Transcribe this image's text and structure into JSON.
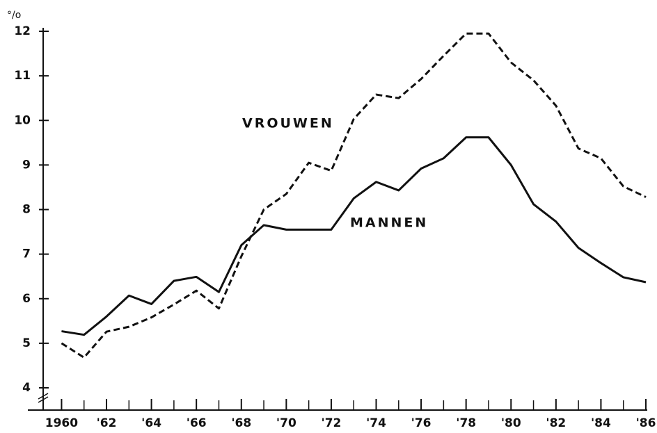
{
  "chart_data": {
    "type": "line",
    "y_unit_label": "°/o",
    "annotations": [
      "VROUWEN",
      "MANNEN"
    ],
    "x": [
      1960,
      1961,
      1962,
      1963,
      1964,
      1965,
      1966,
      1967,
      1968,
      1969,
      1970,
      1971,
      1972,
      1973,
      1974,
      1975,
      1976,
      1977,
      1978,
      1979,
      1980,
      1981,
      1982,
      1983,
      1984,
      1985,
      1986
    ],
    "series": [
      {
        "name": "VROUWEN",
        "color": "#111",
        "dash": true,
        "values": [
          5.0,
          4.68,
          5.26,
          5.37,
          5.58,
          5.87,
          6.18,
          5.78,
          6.95,
          8.0,
          8.35,
          9.05,
          8.87,
          10.03,
          10.58,
          10.5,
          10.93,
          11.45,
          11.95,
          11.95,
          11.3,
          10.9,
          10.33,
          9.37,
          9.15,
          8.52,
          8.28
        ]
      },
      {
        "name": "MANNEN",
        "color": "#111",
        "dash": false,
        "values": [
          5.27,
          5.19,
          5.6,
          6.07,
          5.88,
          6.4,
          6.49,
          6.15,
          7.2,
          7.65,
          7.55,
          7.55,
          7.55,
          8.25,
          8.62,
          8.43,
          8.92,
          9.15,
          9.62,
          9.62,
          9.0,
          8.12,
          7.73,
          7.14,
          6.8,
          6.48,
          6.37
        ]
      }
    ],
    "xlim": [
      1958.5,
      1986
    ],
    "xticks": [
      {
        "value": 1960,
        "label": "1960"
      },
      {
        "value": 1962,
        "label": "'62"
      },
      {
        "value": 1964,
        "label": "'64"
      },
      {
        "value": 1966,
        "label": "'66"
      },
      {
        "value": 1968,
        "label": "'68"
      },
      {
        "value": 1970,
        "label": "'70"
      },
      {
        "value": 1972,
        "label": "'72"
      },
      {
        "value": 1974,
        "label": "'74"
      },
      {
        "value": 1976,
        "label": "'76"
      },
      {
        "value": 1978,
        "label": "'78"
      },
      {
        "value": 1980,
        "label": "'80"
      },
      {
        "value": 1982,
        "label": "'82"
      },
      {
        "value": 1984,
        "label": "'84"
      },
      {
        "value": 1986,
        "label": "'86"
      }
    ],
    "ylim": [
      4,
      12
    ],
    "yticks": [
      4,
      5,
      6,
      7,
      8,
      9,
      10,
      11,
      12
    ]
  }
}
